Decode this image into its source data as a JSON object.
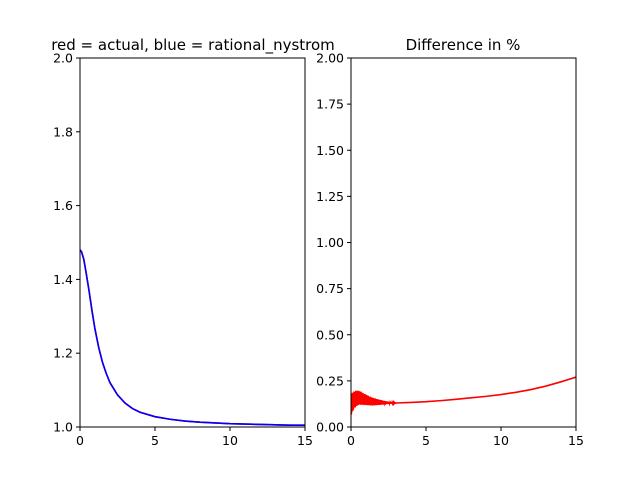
{
  "chart_data": [
    {
      "type": "line",
      "title": "red = actual, blue = rational_nystrom",
      "xlabel": "",
      "ylabel": "",
      "xlim": [
        0,
        15
      ],
      "ylim": [
        1.0,
        2.0
      ],
      "xticks": [
        0,
        5,
        10,
        15
      ],
      "xtick_labels": [
        "0",
        "5",
        "10",
        "15"
      ],
      "yticks": [
        1.0,
        1.2,
        1.4,
        1.6,
        1.8,
        2.0
      ],
      "ytick_labels": [
        "1.0",
        "1.2",
        "1.4",
        "1.6",
        "1.8",
        "2.0"
      ],
      "grid": false,
      "series": [
        {
          "color": "#ff0000",
          "x": [
            0,
            0.1,
            0.25,
            0.4,
            0.6,
            0.8,
            1.0,
            1.25,
            1.5,
            1.75,
            2.0,
            2.5,
            3.0,
            3.5,
            4.0,
            5.0,
            6.0,
            7.0,
            8.0,
            9.0,
            10.0,
            11.0,
            12.0,
            13.0,
            14.0,
            15.0
          ],
          "y": [
            1.48,
            1.475,
            1.455,
            1.42,
            1.37,
            1.315,
            1.265,
            1.215,
            1.175,
            1.145,
            1.12,
            1.087,
            1.065,
            1.05,
            1.04,
            1.028,
            1.021,
            1.016,
            1.013,
            1.011,
            1.009,
            1.008,
            1.007,
            1.006,
            1.005,
            1.005
          ]
        },
        {
          "color": "#0000ff",
          "x": [
            0,
            0.1,
            0.25,
            0.4,
            0.6,
            0.8,
            1.0,
            1.25,
            1.5,
            1.75,
            2.0,
            2.5,
            3.0,
            3.5,
            4.0,
            5.0,
            6.0,
            7.0,
            8.0,
            9.0,
            10.0,
            11.0,
            12.0,
            13.0,
            14.0,
            15.0
          ],
          "y": [
            1.48,
            1.475,
            1.455,
            1.42,
            1.37,
            1.315,
            1.265,
            1.215,
            1.175,
            1.145,
            1.12,
            1.087,
            1.065,
            1.05,
            1.04,
            1.028,
            1.021,
            1.016,
            1.013,
            1.011,
            1.009,
            1.008,
            1.007,
            1.006,
            1.005,
            1.005
          ]
        }
      ]
    },
    {
      "type": "line",
      "title": "Difference in %",
      "xlabel": "",
      "ylabel": "",
      "xlim": [
        0,
        15
      ],
      "ylim": [
        0.0,
        2.0
      ],
      "xticks": [
        0,
        5,
        10,
        15
      ],
      "xtick_labels": [
        "0",
        "5",
        "10",
        "15"
      ],
      "yticks": [
        0.0,
        0.25,
        0.5,
        0.75,
        1.0,
        1.25,
        1.5,
        1.75,
        2.0
      ],
      "ytick_labels": [
        "0.00",
        "0.25",
        "0.50",
        "0.75",
        "1.00",
        "1.25",
        "1.50",
        "1.75",
        "2.00"
      ],
      "grid": false,
      "series": [
        {
          "color": "#ff0000",
          "x": [
            0,
            0.1,
            0.2,
            0.3,
            0.4,
            0.5,
            0.6,
            0.7,
            0.8,
            0.9,
            1.0,
            1.2,
            1.5,
            2.0,
            2.5,
            3.0,
            4.0,
            5.0,
            6.0,
            7.0,
            8.0,
            9.0,
            10.0,
            11.0,
            12.0,
            13.0,
            14.0,
            15.0
          ],
          "y": [
            0.12,
            0.135,
            0.145,
            0.152,
            0.156,
            0.158,
            0.157,
            0.155,
            0.152,
            0.15,
            0.147,
            0.142,
            0.137,
            0.133,
            0.131,
            0.13,
            0.133,
            0.137,
            0.143,
            0.15,
            0.158,
            0.166,
            0.176,
            0.188,
            0.203,
            0.222,
            0.245,
            0.27
          ]
        }
      ],
      "oscillation_region_x": [
        0,
        3.0
      ],
      "oscillation_amplitude": [
        0.06,
        0.0
      ]
    }
  ]
}
